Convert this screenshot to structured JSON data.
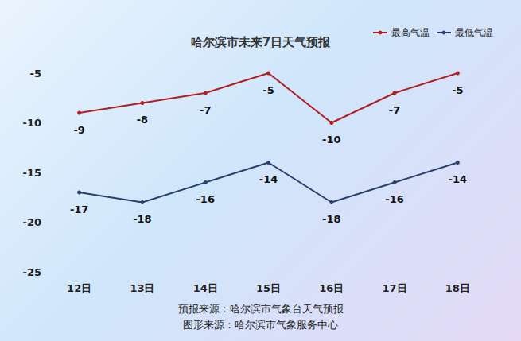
{
  "chart_data": {
    "type": "line",
    "title": "哈尔滨市未来7日天气预报",
    "categories": [
      "12日",
      "13日",
      "14日",
      "15日",
      "16日",
      "17日",
      "18日"
    ],
    "series": [
      {
        "name": "最高气温",
        "color": "#b01e1e",
        "values": [
          -9,
          -8,
          -7,
          -5,
          -10,
          -7,
          -5
        ]
      },
      {
        "name": "最低气温",
        "color": "#2b3f6e",
        "values": [
          -17,
          -18,
          -16,
          -14,
          -18,
          -16,
          -14
        ]
      }
    ],
    "ylim": [
      -25,
      -5
    ],
    "yticks": [
      -25,
      -20,
      -15,
      -10,
      -5
    ],
    "grid": false,
    "legend": "top-right",
    "data_labels": true,
    "marker": "circle",
    "annotations": [
      "预报来源：哈尔滨市气象台天气预报",
      "图形来源：哈尔滨市气象服务中心"
    ]
  }
}
